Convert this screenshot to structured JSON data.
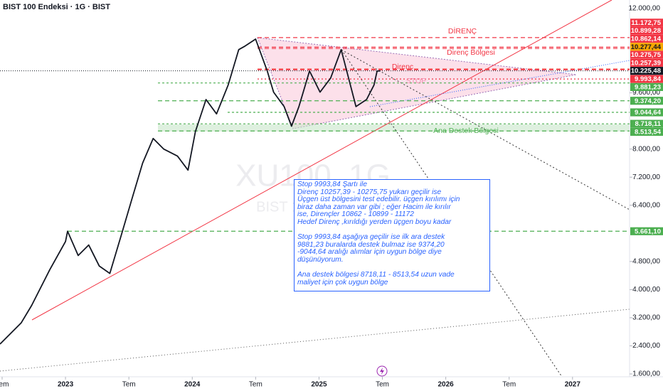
{
  "title": "BIST 100 Endeksi · 1G · BIST",
  "watermark": [
    "XU100, 1G",
    "BIST 100 Endeksi"
  ],
  "chart_data": {
    "type": "line",
    "color": "#131722",
    "x": [
      -6.2,
      -4.2,
      -3.2,
      -1.5,
      0,
      0.2,
      1.2,
      2.2,
      3.2,
      4.2,
      5.3,
      6.3,
      7.3,
      8.3,
      9.3,
      10.6,
      11.6,
      12.3,
      13.3,
      14.3,
      15.4,
      16.4,
      17.0,
      18.0,
      19.1,
      19.7,
      20.7,
      21.4,
      22.1,
      23.1,
      24.1,
      25.1,
      26.1,
      26.8,
      27.5,
      28.5,
      29.2,
      29.5,
      29.8
    ],
    "values": [
      2450,
      3050,
      3550,
      4560,
      5370,
      5661,
      4970,
      5270,
      4670,
      4460,
      5570,
      6590,
      7600,
      8300,
      8000,
      7800,
      7400,
      8500,
      9410,
      9000,
      9820,
      10830,
      10930,
      11130,
      10220,
      9620,
      9210,
      8650,
      9210,
      10220,
      9620,
      10020,
      10830,
      10020,
      9210,
      9410,
      9820,
      10220,
      10225.48
    ],
    "xlim": [
      -6.2,
      53.4
    ],
    "xticks": [
      {
        "value": -6,
        "label": "Tem"
      },
      {
        "value": 0,
        "label": "2023"
      },
      {
        "value": 6,
        "label": "Tem"
      },
      {
        "value": 12,
        "label": "2024"
      },
      {
        "value": 18,
        "label": "Tem"
      },
      {
        "value": 24,
        "label": "2025"
      },
      {
        "value": 30,
        "label": "Tem"
      },
      {
        "value": 36,
        "label": "2026"
      },
      {
        "value": 42,
        "label": "Tem"
      },
      {
        "value": 48,
        "label": "2027"
      }
    ],
    "ylim": [
      1519,
      12242
    ],
    "yticks": [
      {
        "value": 1600,
        "label": "1.600,00"
      },
      {
        "value": 2400,
        "label": "2.400,00"
      },
      {
        "value": 3200,
        "label": "3.200,00"
      },
      {
        "value": 4000,
        "label": "4.000,00"
      },
      {
        "value": 4800,
        "label": "4.800,00"
      },
      {
        "value": 6400,
        "label": "6.400,00"
      },
      {
        "value": 7200,
        "label": "7.200,00"
      },
      {
        "value": 8000,
        "label": "8.000,00"
      },
      {
        "value": 9600,
        "label": "9.600,00"
      },
      {
        "value": 12000,
        "label": "12.000,00"
      }
    ],
    "last": {
      "value": 10225.48,
      "label": "10.225,48",
      "color": "#131722"
    },
    "levels": [
      {
        "value": 11172.75,
        "label": "11.172,75",
        "color": "#f23645"
      },
      {
        "value": 10899.28,
        "label": "10.899,28",
        "color": "#f23645"
      },
      {
        "value": 10862.14,
        "label": "10.862,14",
        "color": "#f23645"
      },
      {
        "value": 10277.44,
        "label": "10.277,44",
        "color": "#f7a600"
      },
      {
        "value": 10275.75,
        "label": "10.275,75",
        "color": "#f23645"
      },
      {
        "value": 10257.39,
        "label": "10.257,39",
        "color": "#f23645"
      },
      {
        "value": 9993.84,
        "label": "9.993,84",
        "color": "#f23645"
      },
      {
        "value": 9881.23,
        "label": "9.881,23",
        "color": "#4caf50"
      },
      {
        "value": 9374.2,
        "label": "9.374,20",
        "color": "#4caf50"
      },
      {
        "value": 9044.64,
        "label": "9.044,64",
        "color": "#4caf50"
      },
      {
        "value": 8718.11,
        "label": "8.718,11",
        "color": "#4caf50"
      },
      {
        "value": 8513.54,
        "label": "8.513,54",
        "color": "#4caf50"
      },
      {
        "value": 5661.1,
        "label": "5.661,10",
        "color": "#4caf50"
      }
    ],
    "annotations": [
      "DİRENÇ",
      "Direnç Bölgesi",
      "Direnç",
      "STOP",
      "Ana Destek Bölgesi"
    ]
  },
  "note": {
    "paragraphs": [
      [
        "Stop 9993,84 Şartı ile",
        "Direnç 10257,39  - 10275,75 yukarı geçilir ise",
        "Üçgen üst bölgesini test edebilir. üçgen kırılımı için",
        "biraz daha zaman var gibi ; eğer Hacim ile kırılır",
        "ise, Dirençler 10862 - 10899 - 11172",
        "Hedef Direnç ,kırıldığı yerden üçgen boyu kadar"
      ],
      [
        "Stop 9993,84 aşağıya geçilir ise ilk ara destek",
        "9881,23 buralarda destek bulmaz ise 9374,20",
        "-9044,64 aralığı alımlar için uygun bölge diye",
        "düşünüyorum."
      ],
      [
        "Ana destek bölgesi 8718,11 - 8513,54 uzun vade",
        "maliyet için çok uygun bölge"
      ]
    ]
  }
}
